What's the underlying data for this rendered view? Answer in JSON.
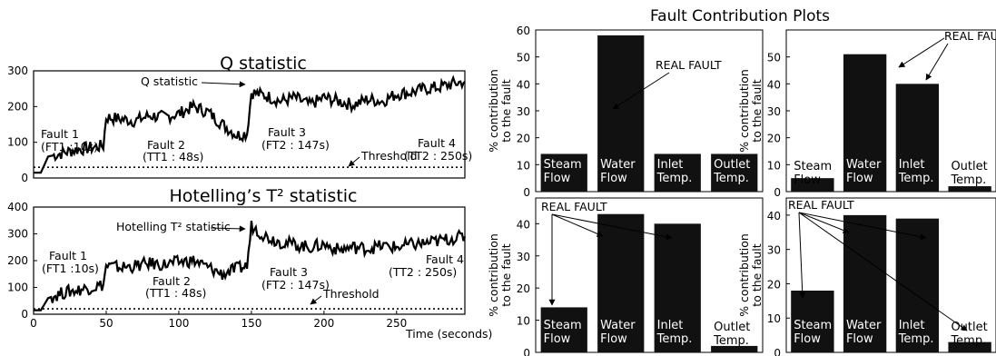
{
  "figure_title_right": "Fault Contribution Plots",
  "chart_data": [
    {
      "type": "line",
      "title": "Q statistic",
      "xlim": [
        0,
        297
      ],
      "ylim": [
        0,
        300
      ],
      "yticks": [
        0,
        100,
        200,
        300
      ],
      "xticks": [],
      "series": [
        {
          "name": "Q statistic",
          "x": [
            0,
            5,
            10,
            20,
            30,
            40,
            48,
            50,
            60,
            70,
            80,
            90,
            100,
            110,
            120,
            130,
            140,
            147,
            150,
            160,
            170,
            180,
            190,
            200,
            210,
            220,
            230,
            240,
            250,
            260,
            270,
            280,
            290,
            297
          ],
          "values": [
            15,
            15,
            60,
            70,
            80,
            85,
            90,
            170,
            165,
            160,
            175,
            170,
            180,
            200,
            185,
            150,
            120,
            125,
            240,
            230,
            215,
            225,
            205,
            225,
            215,
            205,
            220,
            215,
            235,
            240,
            250,
            255,
            265,
            270
          ]
        },
        {
          "name": "Threshold",
          "x": [
            0,
            297
          ],
          "values": [
            30,
            30
          ]
        }
      ],
      "annotations": {
        "curve_label": "Q statistic",
        "fault1": "Fault 1",
        "fault1_sub": "(FT1 :10s)",
        "fault2": "Fault 2",
        "fault2_sub": "(TT1 : 48s)",
        "fault3": "Fault 3",
        "fault3_sub": "(FT2 : 147s)",
        "fault4": "Fault 4",
        "fault4_sub": "(TT2 : 250s)",
        "threshold": "Threshold"
      }
    },
    {
      "type": "line",
      "title": "Hotelling’s T² statistic",
      "xlim": [
        0,
        297
      ],
      "ylim": [
        0,
        400
      ],
      "yticks": [
        0,
        100,
        200,
        300,
        400
      ],
      "xticks": [
        0,
        50,
        100,
        150,
        200,
        250
      ],
      "xlabel": "Time (seconds)",
      "series": [
        {
          "name": "Hotelling T² statistic",
          "x": [
            0,
            5,
            10,
            20,
            30,
            40,
            48,
            50,
            60,
            70,
            80,
            90,
            100,
            110,
            120,
            130,
            140,
            147,
            150,
            160,
            170,
            180,
            190,
            200,
            210,
            220,
            230,
            240,
            250,
            260,
            270,
            280,
            290,
            297
          ],
          "values": [
            15,
            15,
            60,
            80,
            90,
            100,
            110,
            180,
            175,
            180,
            190,
            185,
            195,
            200,
            175,
            150,
            170,
            180,
            330,
            290,
            270,
            260,
            250,
            260,
            240,
            250,
            245,
            255,
            250,
            260,
            265,
            275,
            285,
            290
          ]
        },
        {
          "name": "Threshold",
          "x": [
            0,
            297
          ],
          "values": [
            20,
            20
          ]
        }
      ],
      "annotations": {
        "curve_label": "Hotelling T² statistic",
        "fault1": "Fault 1",
        "fault1_sub": "(FT1 :10s)",
        "fault2": "Fault 2",
        "fault2_sub": "(TT1 : 48s)",
        "fault3": "Fault 3",
        "fault3_sub": "(FT2 : 147s)",
        "fault4": "Fault 4",
        "fault4_sub": "(TT2 : 250s)",
        "threshold": "Threshold"
      }
    },
    {
      "type": "bar",
      "ylabel": "% contribution to the fault",
      "ylim": [
        0,
        60
      ],
      "yticks": [
        0,
        10,
        20,
        30,
        40,
        50,
        60
      ],
      "categories": [
        "Steam Flow",
        "Water Flow",
        "Inlet Temp.",
        "Outlet Temp."
      ],
      "values": [
        14,
        58,
        14,
        14
      ],
      "annotation": "REAL FAULT"
    },
    {
      "type": "bar",
      "ylabel": "% contribution to the fault",
      "ylim": [
        0,
        60
      ],
      "yticks": [
        0,
        10,
        20,
        30,
        40,
        50
      ],
      "categories": [
        "Steam Flow",
        "Water Flow",
        "Inlet Temp.",
        "Outlet Temp."
      ],
      "values": [
        5,
        51,
        40,
        2
      ],
      "annotation": "REAL FAULT"
    },
    {
      "type": "bar",
      "ylabel": "% contribution to the fault",
      "ylim": [
        0,
        48
      ],
      "yticks": [
        0,
        10,
        20,
        30,
        40
      ],
      "categories": [
        "Steam Flow",
        "Water Flow",
        "Inlet Temp.",
        "Outlet Temp."
      ],
      "values": [
        14,
        43,
        40,
        2
      ],
      "annotation": "REAL FAULT"
    },
    {
      "type": "bar",
      "ylabel": "% contribution to the fault",
      "ylim": [
        0,
        45
      ],
      "yticks": [
        0,
        10,
        20,
        30,
        40
      ],
      "categories": [
        "Steam Flow",
        "Water Flow",
        "Inlet Temp.",
        "Outlet Temp."
      ],
      "values": [
        18,
        40,
        39,
        3
      ],
      "annotation": "REAL FAULT"
    }
  ]
}
